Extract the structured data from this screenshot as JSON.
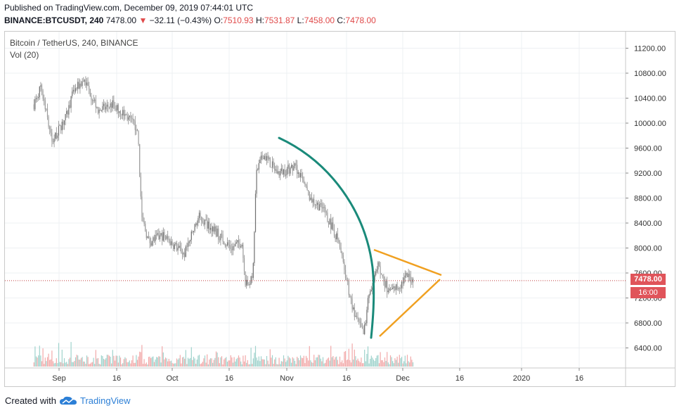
{
  "header": {
    "published": "Published on TradingView.com, December 09, 2019 07:44:01 UTC",
    "ticker": "BINANCE:BTCUSDT, 240",
    "last": "7478.00",
    "change_arrow": "▼",
    "change": "−32.11 (−0.43%)",
    "o_label": "O:",
    "o_value": "7510.93",
    "h_label": "H:",
    "h_value": "7531.87",
    "l_label": "L:",
    "l_value": "7458.00",
    "c_label": "C:",
    "c_value": "7478.00"
  },
  "pane": {
    "title": "Bitcoin / TetherUS, 240, BINANCE",
    "volume_label": "Vol (20)"
  },
  "price_tag": {
    "value": "7478.00",
    "time": "16:00"
  },
  "footer": {
    "created_with": "Created with",
    "brand": "TradingView"
  },
  "colors": {
    "up": "#7f7f7f",
    "down": "#7f7f7f",
    "curve": "#1a8a7a",
    "triangle": "#f0a020",
    "price_line": "#c04040",
    "vol_up": "#9fd3cc",
    "vol_down": "#f2a9a9",
    "grid": "#eef0f3"
  },
  "chart_data": {
    "type": "candlestick",
    "x_ticks": [
      "Sep",
      "16",
      "Oct",
      "16",
      "Nov",
      "16",
      "Dec",
      "16",
      "2020",
      "16"
    ],
    "y_ticks": [
      "11200.00",
      "10800.00",
      "10400.00",
      "10000.00",
      "9600.00",
      "9200.00",
      "8800.00",
      "8400.00",
      "8000.00",
      "7600.00",
      "7200.00",
      "6800.00",
      "6400.00"
    ],
    "ylim": [
      6100,
      11500
    ],
    "last_price": 7478.0,
    "price_path_approx": [
      {
        "date": "2019-08-25",
        "close": 10300
      },
      {
        "date": "2019-08-27",
        "close": 10600
      },
      {
        "date": "2019-08-30",
        "close": 9700
      },
      {
        "date": "2019-09-03",
        "close": 10100
      },
      {
        "date": "2019-09-05",
        "close": 10500
      },
      {
        "date": "2019-09-08",
        "close": 10700
      },
      {
        "date": "2019-09-12",
        "close": 10200
      },
      {
        "date": "2019-09-16",
        "close": 10300
      },
      {
        "date": "2019-09-20",
        "close": 10100
      },
      {
        "date": "2019-09-23",
        "close": 9900
      },
      {
        "date": "2019-09-24",
        "close": 8500
      },
      {
        "date": "2019-09-26",
        "close": 8100
      },
      {
        "date": "2019-09-30",
        "close": 8200
      },
      {
        "date": "2019-10-06",
        "close": 7900
      },
      {
        "date": "2019-10-10",
        "close": 8500
      },
      {
        "date": "2019-10-14",
        "close": 8300
      },
      {
        "date": "2019-10-19",
        "close": 8000
      },
      {
        "date": "2019-10-22",
        "close": 8100
      },
      {
        "date": "2019-10-23",
        "close": 7400
      },
      {
        "date": "2019-10-25",
        "close": 7500
      },
      {
        "date": "2019-10-26",
        "close": 9200
      },
      {
        "date": "2019-10-28",
        "close": 9500
      },
      {
        "date": "2019-11-01",
        "close": 9200
      },
      {
        "date": "2019-11-06",
        "close": 9300
      },
      {
        "date": "2019-11-10",
        "close": 8800
      },
      {
        "date": "2019-11-14",
        "close": 8600
      },
      {
        "date": "2019-11-18",
        "close": 8100
      },
      {
        "date": "2019-11-22",
        "close": 7000
      },
      {
        "date": "2019-11-25",
        "close": 6600
      },
      {
        "date": "2019-11-26",
        "close": 7100
      },
      {
        "date": "2019-11-29",
        "close": 7700
      },
      {
        "date": "2019-12-02",
        "close": 7300
      },
      {
        "date": "2019-12-05",
        "close": 7400
      },
      {
        "date": "2019-12-07",
        "close": 7550
      },
      {
        "date": "2019-12-09",
        "close": 7478
      }
    ],
    "annotations": [
      {
        "type": "arc",
        "color": "teal"
      },
      {
        "type": "symmetrical-triangle",
        "color": "orange",
        "upper": [
          [
            "2019-11-26",
            7950
          ],
          [
            "2019-12-12",
            7570
          ]
        ],
        "lower": [
          [
            "2019-11-26",
            6550
          ],
          [
            "2019-12-12",
            7500
          ]
        ]
      }
    ]
  }
}
